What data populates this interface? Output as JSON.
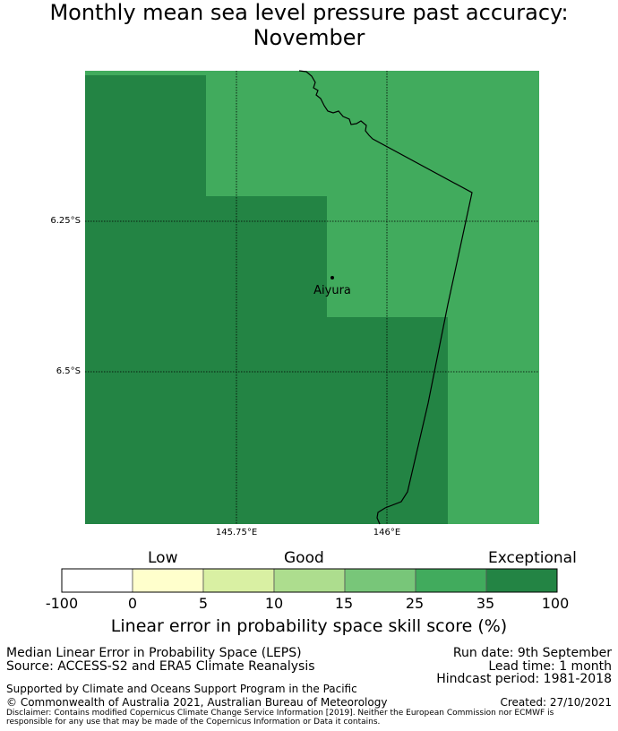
{
  "title": {
    "line1": "Monthly mean sea level pressure past accuracy:",
    "line2": "November"
  },
  "map": {
    "lat_labels": [
      "6.25°S",
      "6.5°S"
    ],
    "lon_labels": [
      "145.75°E",
      "146°E"
    ],
    "place": "Aiyura",
    "colors": {
      "35-100": "#238444",
      "25-35": "#41ab5d"
    }
  },
  "colorbar": {
    "categories": [
      "Low",
      "Good",
      "Exceptional"
    ],
    "ticks": [
      "-100",
      "0",
      "5",
      "10",
      "15",
      "25",
      "35",
      "100"
    ],
    "colors": [
      "#ffffff",
      "#ffffcc",
      "#d9f0a3",
      "#addd8e",
      "#78c679",
      "#41ab5d",
      "#238444"
    ],
    "label": "Linear error in probability space skill score (%)"
  },
  "footer": {
    "left1": "Median Linear Error in Probability Space (LEPS)",
    "left2": "Source: ACCESS-S2 and ERA5 Climate Reanalysis",
    "right1": "Run date: 9th September",
    "right2": "Lead time: 1 month",
    "right3": "Hindcast period: 1981-2018",
    "support": "Supported by Climate and Oceans Support Program in the Pacific",
    "copyright": "© Commonwealth of Australia 2021, Australian Bureau of Meteorology",
    "created": "Created: 27/10/2021",
    "disclaimer": "Disclaimer: Contains modified Copernicus Climate Change Service Information [2019]. Neither the European Commission nor ECMWF is responsible for any use that may be made of the Copernicus Information or Data it contains."
  }
}
